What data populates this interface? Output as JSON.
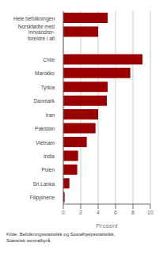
{
  "chart_data": {
    "type": "bar",
    "orientation": "horizontal",
    "categories": [
      "Hele befolkningen",
      "Norskfødte med\ninnvandrer-\nforeldre i alt",
      null,
      "Chile",
      "Marokko",
      "Tyrkia",
      "Danmark",
      "Iran",
      "Pakistan",
      "Vietnam",
      "India",
      "Polen",
      "Sri Lanka",
      "Filippinene"
    ],
    "values": [
      5.1,
      4.0,
      0,
      9.1,
      7.7,
      5.1,
      5.0,
      4.0,
      3.7,
      2.7,
      1.7,
      1.6,
      0.7,
      0.15
    ],
    "color": "#9b0000",
    "xlabel": "Prosent",
    "xlim": [
      0,
      10
    ],
    "xticks": [
      0,
      2,
      4,
      6,
      8,
      10
    ],
    "grid": true,
    "annotations": [
      "Kilde: Befolkningsstatistikk og Sosialhjelpsstatistikk,\nStatistisk sentralbyrå."
    ]
  }
}
